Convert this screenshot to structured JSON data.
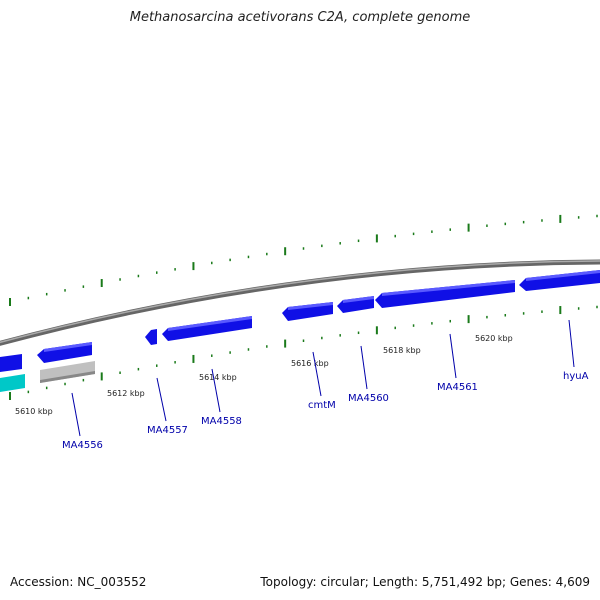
{
  "title": "Methanosarcina acetivorans C2A, complete genome",
  "accession": "Accession: NC_003552",
  "summary": "Topology: circular; Length: 5,751,492 bp; Genes: 4,609",
  "scale_labels": [
    {
      "key": "kbp-5610",
      "text": "5610 kbp"
    },
    {
      "key": "kbp-5612",
      "text": "5612 kbp"
    },
    {
      "key": "kbp-5614",
      "text": "5614 kbp"
    },
    {
      "key": "kbp-5616",
      "text": "5616 kbp"
    },
    {
      "key": "kbp-5618",
      "text": "5618 kbp"
    },
    {
      "key": "kbp-5620",
      "text": "5620 kbp"
    }
  ],
  "genes": [
    {
      "key": "MA4556",
      "label": "MA4556"
    },
    {
      "key": "MA4557",
      "label": "MA4557"
    },
    {
      "key": "MA4558",
      "label": "MA4558"
    },
    {
      "key": "cmtM",
      "label": "cmtM"
    },
    {
      "key": "MA4560",
      "label": "MA4560"
    },
    {
      "key": "MA4561",
      "label": "MA4561"
    },
    {
      "key": "hyuA",
      "label": "hyuA"
    }
  ],
  "colors": {
    "gene": "#1010e6",
    "gene_highlight": "#5a5aff",
    "rna": "#00c8c8",
    "pseudo": "#c0c0c0",
    "backbone": "#888888",
    "tick": "#1a7a1a",
    "label": "#0000aa"
  }
}
